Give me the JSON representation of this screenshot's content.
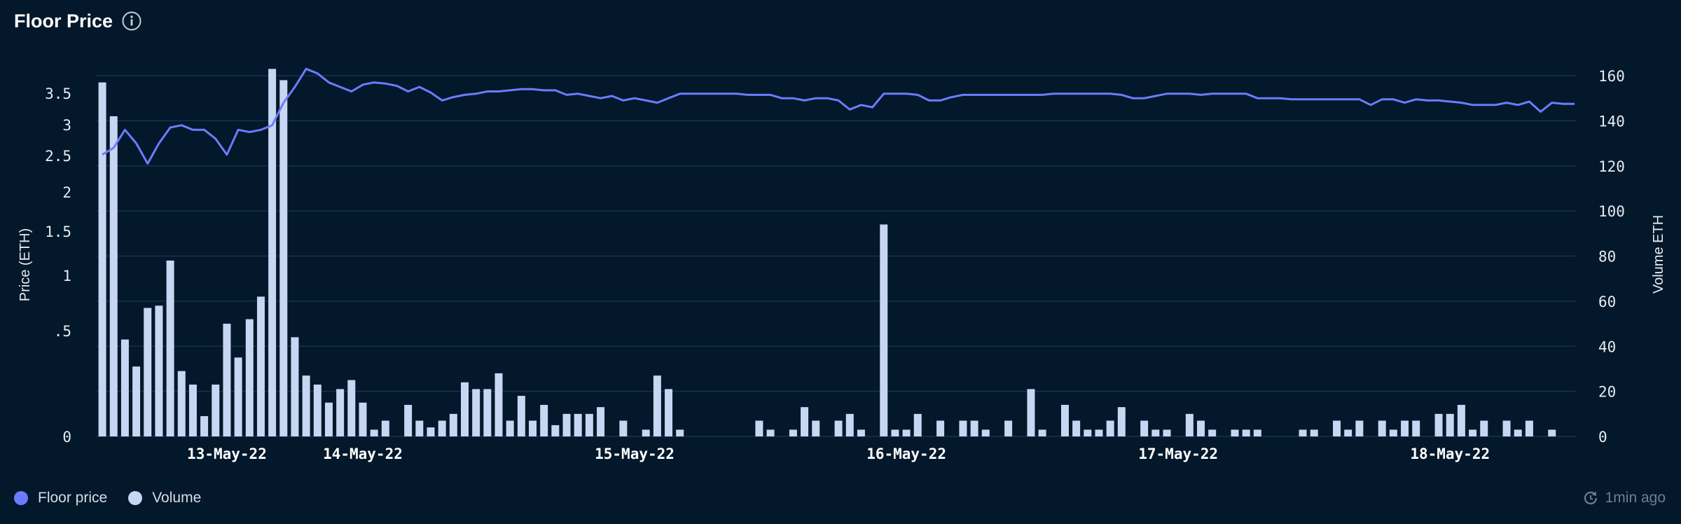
{
  "header": {
    "title": "Floor Price",
    "info_icon": "info-icon"
  },
  "legend": {
    "floor_label": "Floor price",
    "volume_label": "Volume"
  },
  "status": {
    "updated": "1min ago",
    "refresh_icon": "refresh-icon"
  },
  "colors": {
    "background": "#03182b",
    "floor_line": "#6b7cff",
    "volume_bar": "#c7d6f2",
    "grid": "#16324a"
  },
  "chart_data": {
    "type": "bar+line",
    "title": "Floor Price",
    "ylabel_left": "Price (ETH)",
    "ylabel_right": "Volume ETH",
    "y_left_ticks": [
      "0",
      ".5",
      "1",
      "1.5",
      "2",
      "2.5",
      "3",
      "3.5"
    ],
    "y_right_ticks": [
      "0",
      "20",
      "40",
      "60",
      "80",
      "100",
      "120",
      "140",
      "160"
    ],
    "y_right_range": [
      0,
      160
    ],
    "x_tick_labels": [
      "13-May-22",
      "14-May-22",
      "15-May-22",
      "16-May-22",
      "17-May-22",
      "18-May-22"
    ],
    "x_tick_index": [
      11,
      23,
      47,
      71,
      95,
      119
    ],
    "grid": true,
    "legend_position": "bottom-left",
    "series": [
      {
        "name": "Volume",
        "type": "bar",
        "axis": "right",
        "values": [
          157,
          142,
          43,
          31,
          57,
          58,
          78,
          29,
          23,
          9,
          23,
          50,
          35,
          52,
          62,
          163,
          158,
          44,
          27,
          23,
          15,
          21,
          25,
          15,
          3,
          7,
          0,
          14,
          7,
          4,
          7,
          10,
          24,
          21,
          21,
          28,
          7,
          18,
          7,
          14,
          5,
          10,
          10,
          10,
          13,
          0,
          7,
          0,
          3,
          27,
          21,
          3,
          0,
          0,
          0,
          0,
          0,
          0,
          7,
          3,
          0,
          3,
          13,
          7,
          0,
          7,
          10,
          3,
          0,
          94,
          3,
          3,
          10,
          0,
          7,
          0,
          7,
          7,
          3,
          0,
          7,
          0,
          21,
          3,
          0,
          14,
          7,
          3,
          3,
          7,
          13,
          0,
          7,
          3,
          3,
          0,
          10,
          7,
          3,
          0,
          3,
          3,
          3,
          0,
          0,
          0,
          3,
          3,
          0,
          7,
          3,
          7,
          0,
          7,
          3,
          7,
          7,
          0,
          10,
          10,
          14,
          3,
          7,
          0,
          7,
          3,
          7,
          0,
          3,
          0
        ]
      },
      {
        "name": "Floor price",
        "type": "line",
        "axis": "right",
        "values": [
          125,
          128,
          136,
          130,
          121,
          130,
          137,
          138,
          136,
          136,
          132,
          125,
          136,
          135,
          136,
          138,
          148,
          155,
          163,
          161,
          157,
          155,
          153,
          156,
          157,
          156.5,
          155.5,
          153,
          155,
          152.5,
          149,
          150.5,
          151.5,
          152,
          153,
          153,
          153.5,
          154,
          154,
          153.5,
          153.5,
          151.5,
          152,
          151,
          150,
          151,
          149,
          150,
          149,
          148,
          150,
          152,
          152,
          152,
          152,
          152,
          152,
          151.5,
          151.5,
          151.5,
          150,
          150,
          149,
          150,
          150,
          149,
          145,
          147,
          146,
          152,
          152,
          152,
          151.5,
          149,
          149,
          150.5,
          151.5,
          151.5,
          151.5,
          151.5,
          151.5,
          151.5,
          151.5,
          151.5,
          152,
          152,
          152,
          152,
          152,
          152,
          151.5,
          150,
          150,
          151,
          152,
          152,
          152,
          151.5,
          152,
          152,
          152,
          152,
          150,
          150,
          150,
          149.5,
          149.5,
          149.5,
          149.5,
          149.5,
          149.5,
          149.5,
          147,
          149.5,
          149.5,
          148,
          149.5,
          149,
          149,
          148.5,
          148,
          147,
          147,
          147,
          148,
          147,
          148.5,
          144,
          148,
          147.5,
          147.5
        ]
      }
    ]
  }
}
